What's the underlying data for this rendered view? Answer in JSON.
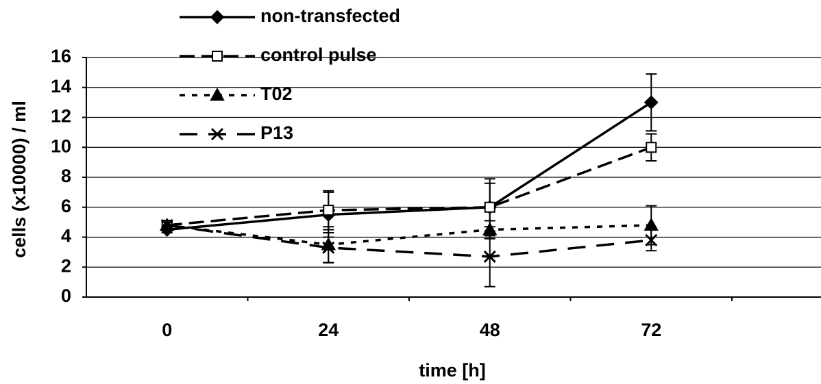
{
  "chart_data": {
    "type": "line",
    "xlabel": "time [h]",
    "ylabel": "cells (x10000) / ml",
    "categories": [
      "0",
      "24",
      "48",
      "72"
    ],
    "ylim": [
      0,
      16
    ],
    "yticks": [
      0,
      2,
      4,
      6,
      8,
      10,
      12,
      14,
      16
    ],
    "grid": true,
    "legend": "upper left",
    "series": [
      {
        "name": "non-transfected",
        "color": "#000000",
        "marker": "diamond",
        "dash": "solid",
        "values": [
          4.5,
          5.5,
          6.0,
          13.0
        ],
        "errors": [
          0.2,
          1.5,
          1.9,
          1.9
        ]
      },
      {
        "name": "control pulse",
        "color": "#000000",
        "marker": "square",
        "dash": "long",
        "values": [
          4.8,
          5.8,
          6.0,
          10.0
        ],
        "errors": [
          0.2,
          1.3,
          1.6,
          0.9
        ]
      },
      {
        "name": "T02",
        "color": "#000000",
        "marker": "triangle",
        "dash": "short",
        "values": [
          4.8,
          3.5,
          4.5,
          4.8
        ],
        "errors": [
          0.2,
          1.2,
          0.6,
          1.3
        ]
      },
      {
        "name": "P13",
        "color": "#000000",
        "marker": "x",
        "dash": "longgap",
        "values": [
          4.8,
          3.3,
          2.7,
          3.8
        ],
        "errors": [
          0.2,
          1.0,
          2.0,
          0.7
        ]
      }
    ]
  }
}
